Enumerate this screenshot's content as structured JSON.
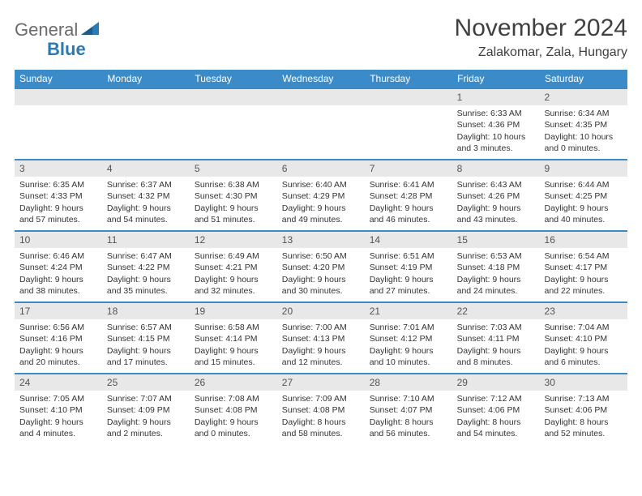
{
  "logo": {
    "word1": "General",
    "word2": "Blue"
  },
  "title": {
    "month": "November 2024",
    "location": "Zalakomar, Zala, Hungary"
  },
  "styling": {
    "header_bg": "#3b8bc8",
    "header_text": "#ffffff",
    "daynum_bg": "#e8e8e8",
    "body_text": "#333333",
    "border_color": "#3b8bc8",
    "font_family": "Arial",
    "cell_font_size": 10.5,
    "header_font_size": 12,
    "title_font_size": 30
  },
  "day_headers": [
    "Sunday",
    "Monday",
    "Tuesday",
    "Wednesday",
    "Thursday",
    "Friday",
    "Saturday"
  ],
  "weeks": [
    [
      null,
      null,
      null,
      null,
      null,
      {
        "n": "1",
        "sr": "Sunrise: 6:33 AM",
        "ss": "Sunset: 4:36 PM",
        "dl": "Daylight: 10 hours and 3 minutes."
      },
      {
        "n": "2",
        "sr": "Sunrise: 6:34 AM",
        "ss": "Sunset: 4:35 PM",
        "dl": "Daylight: 10 hours and 0 minutes."
      }
    ],
    [
      {
        "n": "3",
        "sr": "Sunrise: 6:35 AM",
        "ss": "Sunset: 4:33 PM",
        "dl": "Daylight: 9 hours and 57 minutes."
      },
      {
        "n": "4",
        "sr": "Sunrise: 6:37 AM",
        "ss": "Sunset: 4:32 PM",
        "dl": "Daylight: 9 hours and 54 minutes."
      },
      {
        "n": "5",
        "sr": "Sunrise: 6:38 AM",
        "ss": "Sunset: 4:30 PM",
        "dl": "Daylight: 9 hours and 51 minutes."
      },
      {
        "n": "6",
        "sr": "Sunrise: 6:40 AM",
        "ss": "Sunset: 4:29 PM",
        "dl": "Daylight: 9 hours and 49 minutes."
      },
      {
        "n": "7",
        "sr": "Sunrise: 6:41 AM",
        "ss": "Sunset: 4:28 PM",
        "dl": "Daylight: 9 hours and 46 minutes."
      },
      {
        "n": "8",
        "sr": "Sunrise: 6:43 AM",
        "ss": "Sunset: 4:26 PM",
        "dl": "Daylight: 9 hours and 43 minutes."
      },
      {
        "n": "9",
        "sr": "Sunrise: 6:44 AM",
        "ss": "Sunset: 4:25 PM",
        "dl": "Daylight: 9 hours and 40 minutes."
      }
    ],
    [
      {
        "n": "10",
        "sr": "Sunrise: 6:46 AM",
        "ss": "Sunset: 4:24 PM",
        "dl": "Daylight: 9 hours and 38 minutes."
      },
      {
        "n": "11",
        "sr": "Sunrise: 6:47 AM",
        "ss": "Sunset: 4:22 PM",
        "dl": "Daylight: 9 hours and 35 minutes."
      },
      {
        "n": "12",
        "sr": "Sunrise: 6:49 AM",
        "ss": "Sunset: 4:21 PM",
        "dl": "Daylight: 9 hours and 32 minutes."
      },
      {
        "n": "13",
        "sr": "Sunrise: 6:50 AM",
        "ss": "Sunset: 4:20 PM",
        "dl": "Daylight: 9 hours and 30 minutes."
      },
      {
        "n": "14",
        "sr": "Sunrise: 6:51 AM",
        "ss": "Sunset: 4:19 PM",
        "dl": "Daylight: 9 hours and 27 minutes."
      },
      {
        "n": "15",
        "sr": "Sunrise: 6:53 AM",
        "ss": "Sunset: 4:18 PM",
        "dl": "Daylight: 9 hours and 24 minutes."
      },
      {
        "n": "16",
        "sr": "Sunrise: 6:54 AM",
        "ss": "Sunset: 4:17 PM",
        "dl": "Daylight: 9 hours and 22 minutes."
      }
    ],
    [
      {
        "n": "17",
        "sr": "Sunrise: 6:56 AM",
        "ss": "Sunset: 4:16 PM",
        "dl": "Daylight: 9 hours and 20 minutes."
      },
      {
        "n": "18",
        "sr": "Sunrise: 6:57 AM",
        "ss": "Sunset: 4:15 PM",
        "dl": "Daylight: 9 hours and 17 minutes."
      },
      {
        "n": "19",
        "sr": "Sunrise: 6:58 AM",
        "ss": "Sunset: 4:14 PM",
        "dl": "Daylight: 9 hours and 15 minutes."
      },
      {
        "n": "20",
        "sr": "Sunrise: 7:00 AM",
        "ss": "Sunset: 4:13 PM",
        "dl": "Daylight: 9 hours and 12 minutes."
      },
      {
        "n": "21",
        "sr": "Sunrise: 7:01 AM",
        "ss": "Sunset: 4:12 PM",
        "dl": "Daylight: 9 hours and 10 minutes."
      },
      {
        "n": "22",
        "sr": "Sunrise: 7:03 AM",
        "ss": "Sunset: 4:11 PM",
        "dl": "Daylight: 9 hours and 8 minutes."
      },
      {
        "n": "23",
        "sr": "Sunrise: 7:04 AM",
        "ss": "Sunset: 4:10 PM",
        "dl": "Daylight: 9 hours and 6 minutes."
      }
    ],
    [
      {
        "n": "24",
        "sr": "Sunrise: 7:05 AM",
        "ss": "Sunset: 4:10 PM",
        "dl": "Daylight: 9 hours and 4 minutes."
      },
      {
        "n": "25",
        "sr": "Sunrise: 7:07 AM",
        "ss": "Sunset: 4:09 PM",
        "dl": "Daylight: 9 hours and 2 minutes."
      },
      {
        "n": "26",
        "sr": "Sunrise: 7:08 AM",
        "ss": "Sunset: 4:08 PM",
        "dl": "Daylight: 9 hours and 0 minutes."
      },
      {
        "n": "27",
        "sr": "Sunrise: 7:09 AM",
        "ss": "Sunset: 4:08 PM",
        "dl": "Daylight: 8 hours and 58 minutes."
      },
      {
        "n": "28",
        "sr": "Sunrise: 7:10 AM",
        "ss": "Sunset: 4:07 PM",
        "dl": "Daylight: 8 hours and 56 minutes."
      },
      {
        "n": "29",
        "sr": "Sunrise: 7:12 AM",
        "ss": "Sunset: 4:06 PM",
        "dl": "Daylight: 8 hours and 54 minutes."
      },
      {
        "n": "30",
        "sr": "Sunrise: 7:13 AM",
        "ss": "Sunset: 4:06 PM",
        "dl": "Daylight: 8 hours and 52 minutes."
      }
    ]
  ]
}
